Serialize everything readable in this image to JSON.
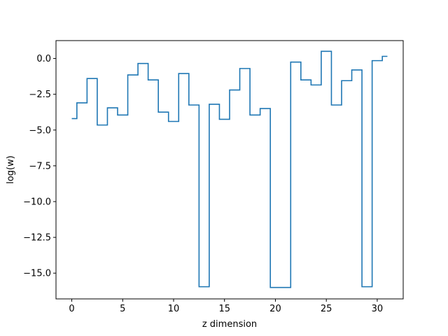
{
  "chart_data": {
    "type": "line",
    "drawstyle": "steps-mid",
    "xlabel": "z dimension",
    "ylabel": "log(w)",
    "xlim": [
      -1.55,
      32.55
    ],
    "ylim": [
      -16.8,
      1.25
    ],
    "xticks": [
      0,
      5,
      10,
      15,
      20,
      25,
      30
    ],
    "xtick_labels": [
      "0",
      "5",
      "10",
      "15",
      "20",
      "25",
      "30"
    ],
    "yticks": [
      0.0,
      -2.5,
      -5.0,
      -7.5,
      -10.0,
      -12.5,
      -15.0
    ],
    "ytick_labels": [
      "0.0",
      "−2.5",
      "−5.0",
      "−7.5",
      "−10.0",
      "−12.5",
      "−15.0"
    ],
    "grid": false,
    "series": [
      {
        "color": "#1f77b4",
        "x": [
          0,
          1,
          2,
          3,
          4,
          5,
          6,
          7,
          8,
          9,
          10,
          11,
          12,
          13,
          14,
          15,
          16,
          17,
          18,
          19,
          20,
          21,
          22,
          23,
          24,
          25,
          26,
          27,
          28,
          29,
          30,
          31
        ],
        "y": [
          -4.2,
          -3.1,
          -1.4,
          -4.65,
          -3.45,
          -3.95,
          -1.15,
          -0.35,
          -1.5,
          -3.75,
          -4.4,
          -1.05,
          -3.25,
          -15.95,
          -3.2,
          -4.25,
          -2.2,
          -0.7,
          -3.95,
          -3.5,
          -16.0,
          -16.0,
          -0.25,
          -1.5,
          -1.85,
          0.5,
          -3.25,
          -1.55,
          -0.8,
          -15.95,
          -0.15,
          0.15
        ]
      }
    ]
  }
}
